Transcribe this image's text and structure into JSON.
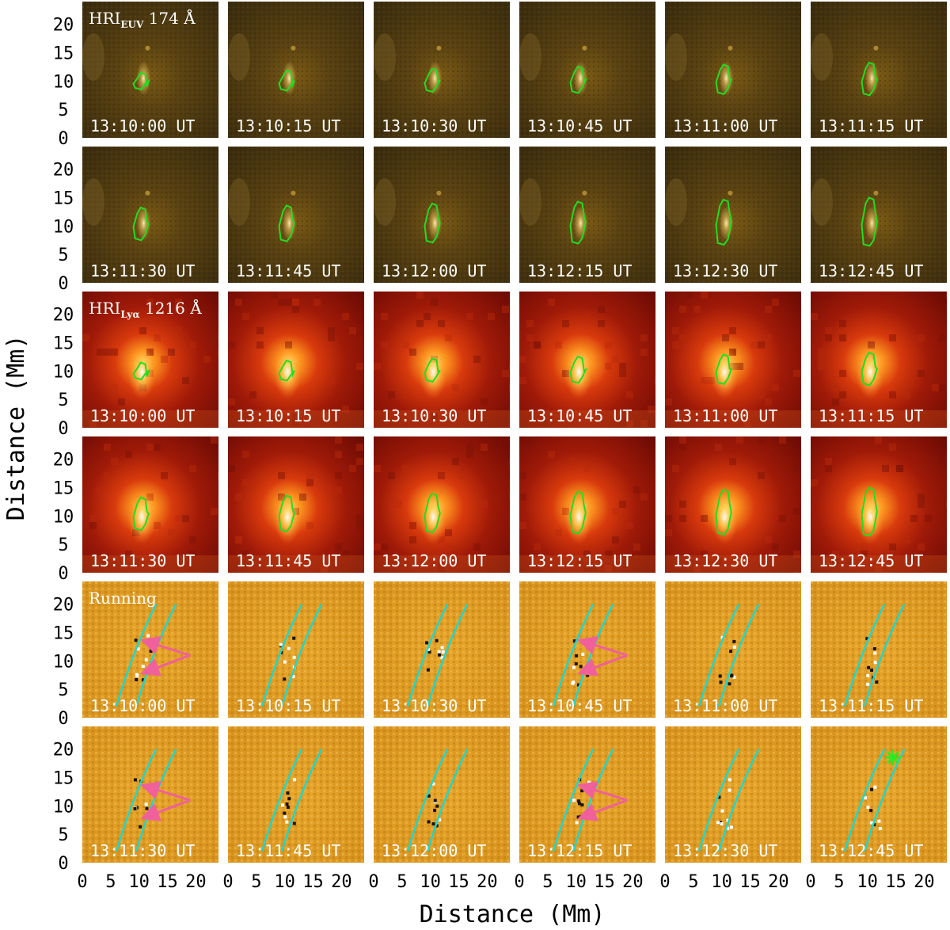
{
  "figure": {
    "y_axis_label": "Distance (Mm)",
    "x_axis_label": "Distance (Mm)",
    "y_ticks": [
      "20",
      "15",
      "10",
      "5",
      "0"
    ],
    "x_ticks": [
      "0",
      "5",
      "10",
      "15",
      "20"
    ],
    "y_tick_values": [
      20,
      15,
      10,
      5,
      0
    ],
    "x_tick_values": [
      0,
      5,
      10,
      15,
      20
    ],
    "axis_range_mm": [
      0,
      24
    ],
    "timestamps": [
      [
        "13:10:00 UT",
        "13:10:15 UT",
        "13:10:30 UT",
        "13:10:45 UT",
        "13:11:00 UT",
        "13:11:15 UT"
      ],
      [
        "13:11:30 UT",
        "13:11:45 UT",
        "13:12:00 UT",
        "13:12:15 UT",
        "13:12:30 UT",
        "13:12:45 UT"
      ]
    ],
    "groups": [
      {
        "id": "euv",
        "label_main": "HRI",
        "label_sub": "EUV",
        "label_tail": " 174 Å",
        "colormap": "dark-gold"
      },
      {
        "id": "lya",
        "label_main": "HRI",
        "label_sub": "Lyα",
        "label_tail": " 1216 Å",
        "colormap": "red-heat"
      },
      {
        "id": "running",
        "label_main": "Running",
        "label_sub": "",
        "label_tail": "",
        "colormap": "gold-difference"
      }
    ],
    "colors": {
      "contour": "#22dd22",
      "slit": "#22d6c8",
      "arrow": "#f0609a",
      "asterisk": "#22ee22",
      "text": "#ffffff"
    },
    "arrow_panels": [
      "13:10:00 UT",
      "13:10:45 UT",
      "13:11:30 UT",
      "13:12:15 UT"
    ],
    "asterisk_panel": "13:12:45 UT"
  }
}
